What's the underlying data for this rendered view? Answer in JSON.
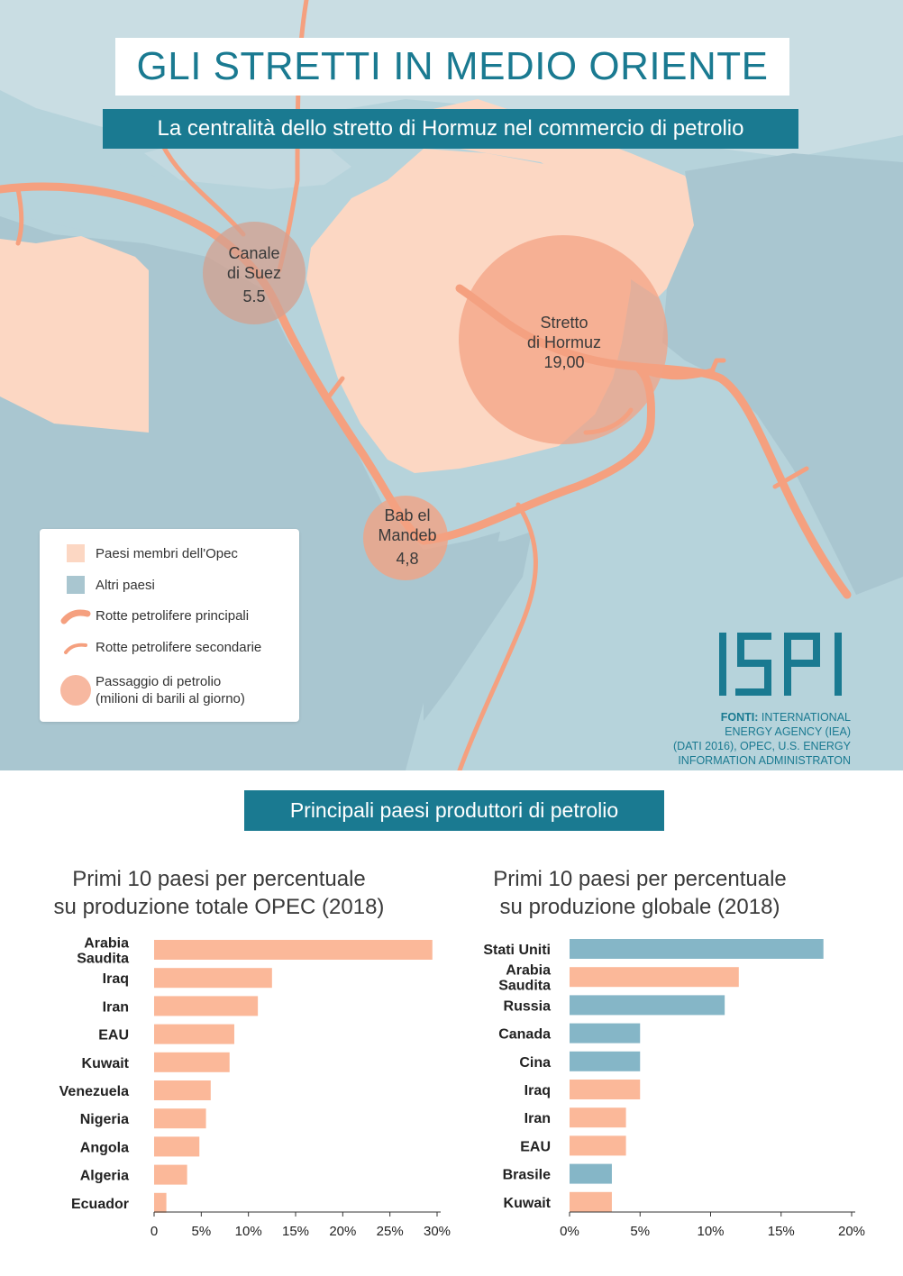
{
  "header": {
    "title": "GLI STRETTI IN MEDIO ORIENTE",
    "subtitle": "La centralità dello stretto di Hormuz nel commercio di petrolio"
  },
  "map": {
    "colors": {
      "sea": "#aecdd6",
      "opec": "#fcd7c3",
      "other_land": "#a9c6d0",
      "route": "#f5a07f",
      "circle": "#f4a182"
    },
    "chokepoints": [
      {
        "name": "Canale di Suez",
        "line1": "Canale",
        "line2": "di Suez",
        "value": "5.5"
      },
      {
        "name": "Stretto di Hormuz",
        "line1": "Stretto",
        "line2": "di Hormuz",
        "value": "19,00"
      },
      {
        "name": "Bab el Mandeb",
        "line1": "Bab el",
        "line2": "Mandeb",
        "value": "4,8"
      }
    ]
  },
  "legend": {
    "opec": "Paesi membri dell'Opec",
    "others": "Altri paesi",
    "main_routes": "Rotte petrolifere principali",
    "secondary_routes": "Rotte petrolifere secondarie",
    "passage_line1": "Passaggio di petrolio",
    "passage_line2": "(milioni di barili al giorno)"
  },
  "logo": {
    "text": "ISPI"
  },
  "sources": {
    "label": "FONTI:",
    "line1": "INTERNATIONAL",
    "line2": "ENERGY AGENCY (IEA)",
    "line3": "(DATI 2016), OPEC, U.S. ENERGY",
    "line4": "INFORMATION ADMINISTRATON"
  },
  "section_title": "Principali paesi produttori di petrolio",
  "chart_data": [
    {
      "type": "bar",
      "orientation": "horizontal",
      "title_line1": "Primi 10 paesi per percentuale",
      "title_line2": "su produzione totale OPEC (2018)",
      "categories": [
        "Arabia Saudita",
        "Iraq",
        "Iran",
        "EAU",
        "Kuwait",
        "Venezuela",
        "Nigeria",
        "Angola",
        "Algeria",
        "Ecuador"
      ],
      "values": [
        29.5,
        12.5,
        11,
        8.5,
        8,
        6,
        5.5,
        4.8,
        3.5,
        1.3
      ],
      "colors": [
        "#fbb899",
        "#fbb899",
        "#fbb899",
        "#fbb899",
        "#fbb899",
        "#fbb899",
        "#fbb899",
        "#fbb899",
        "#fbb899",
        "#fbb899"
      ],
      "xlim": [
        0,
        30
      ],
      "ticks": [
        "0",
        "5%",
        "10%",
        "15%",
        "20%",
        "25%",
        "30%"
      ],
      "grid": false
    },
    {
      "type": "bar",
      "orientation": "horizontal",
      "title_line1": "Primi 10 paesi per percentuale",
      "title_line2": "su produzione globale (2018)",
      "categories": [
        "Stati Uniti",
        "Arabia Saudita",
        "Russia",
        "Canada",
        "Cina",
        "Iraq",
        "Iran",
        "EAU",
        "Brasile",
        "Kuwait"
      ],
      "values": [
        18,
        12,
        11,
        5,
        5,
        5,
        4,
        4,
        3,
        3
      ],
      "colors": [
        "#85b6c7",
        "#fbb899",
        "#85b6c7",
        "#85b6c7",
        "#85b6c7",
        "#fbb899",
        "#fbb899",
        "#fbb899",
        "#85b6c7",
        "#fbb899"
      ],
      "xlim": [
        0,
        20
      ],
      "ticks": [
        "0%",
        "5%",
        "10%",
        "15%",
        "20%"
      ],
      "grid": false
    }
  ]
}
